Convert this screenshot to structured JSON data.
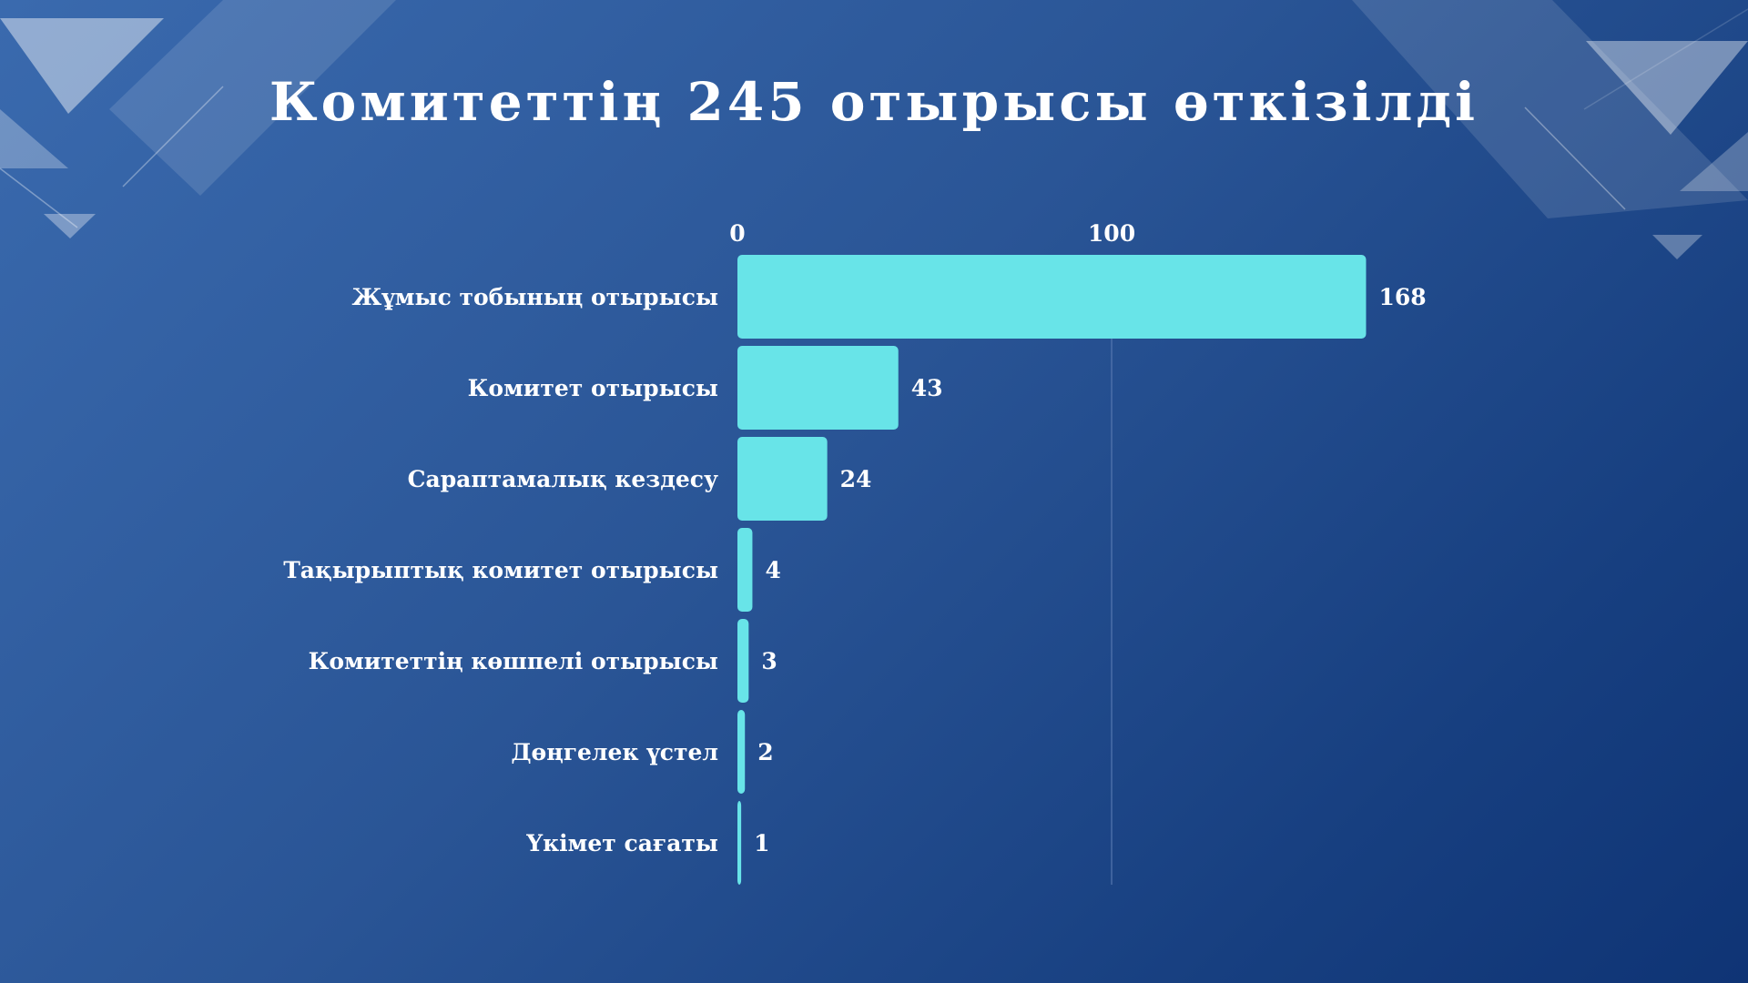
{
  "title": "Комитеттің 245 отырысы өткізілді",
  "colors": {
    "bar": "#68e4e8",
    "text": "#ffffff",
    "grid": "#5577b0"
  },
  "chart_data": {
    "type": "bar",
    "orientation": "horizontal",
    "categories": [
      "Жұмыс тобының отырысы",
      "Комитет отырысы",
      "Сараптамалық кездесу",
      "Тақырыптық комитет отырысы",
      "Комитеттің көшпелі отырысы",
      "Дөңгелек үстел",
      "Үкімет сағаты"
    ],
    "values": [
      168,
      43,
      24,
      4,
      3,
      2,
      1
    ],
    "x_ticks": [
      0,
      100
    ],
    "xlim": [
      0,
      270
    ],
    "grid": true,
    "axis_position": "top"
  }
}
